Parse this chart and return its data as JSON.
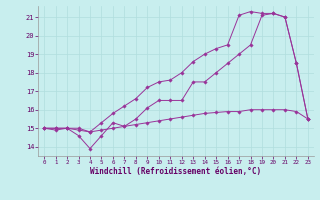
{
  "xlabel": "Windchill (Refroidissement éolien,°C)",
  "background_color": "#c8eeee",
  "grid_color": "#b0dede",
  "line_color": "#993399",
  "xlim": [
    -0.5,
    23.5
  ],
  "ylim": [
    13.5,
    21.6
  ],
  "yticks": [
    14,
    15,
    16,
    17,
    18,
    19,
    20,
    21
  ],
  "xticks": [
    0,
    1,
    2,
    3,
    4,
    5,
    6,
    7,
    8,
    9,
    10,
    11,
    12,
    13,
    14,
    15,
    16,
    17,
    18,
    19,
    20,
    21,
    22,
    23
  ],
  "line1_x": [
    0,
    1,
    2,
    3,
    4,
    5,
    6,
    7,
    8,
    9,
    10,
    11,
    12,
    13,
    14,
    15,
    16,
    17,
    18,
    19,
    20,
    21,
    22,
    23
  ],
  "line1_y": [
    15.0,
    14.9,
    15.0,
    14.6,
    13.9,
    14.6,
    15.3,
    15.1,
    15.5,
    16.1,
    16.5,
    16.5,
    16.5,
    17.5,
    17.5,
    18.0,
    18.5,
    19.0,
    19.5,
    21.1,
    21.2,
    21.0,
    18.5,
    15.5
  ],
  "line2_x": [
    0,
    1,
    2,
    3,
    4,
    5,
    6,
    7,
    8,
    9,
    10,
    11,
    12,
    13,
    14,
    15,
    16,
    17,
    18,
    19,
    20,
    21,
    22,
    23
  ],
  "line2_y": [
    15.0,
    15.0,
    15.0,
    15.0,
    14.8,
    15.3,
    15.8,
    16.2,
    16.6,
    17.2,
    17.5,
    17.6,
    18.0,
    18.6,
    19.0,
    19.3,
    19.5,
    21.1,
    21.3,
    21.2,
    21.2,
    21.0,
    18.5,
    15.5
  ],
  "line3_x": [
    0,
    1,
    2,
    3,
    4,
    5,
    6,
    7,
    8,
    9,
    10,
    11,
    12,
    13,
    14,
    15,
    16,
    17,
    18,
    19,
    20,
    21,
    22,
    23
  ],
  "line3_y": [
    15.0,
    15.0,
    15.0,
    14.9,
    14.8,
    14.9,
    15.0,
    15.1,
    15.2,
    15.3,
    15.4,
    15.5,
    15.6,
    15.7,
    15.8,
    15.85,
    15.9,
    15.9,
    16.0,
    16.0,
    16.0,
    16.0,
    15.9,
    15.5
  ]
}
